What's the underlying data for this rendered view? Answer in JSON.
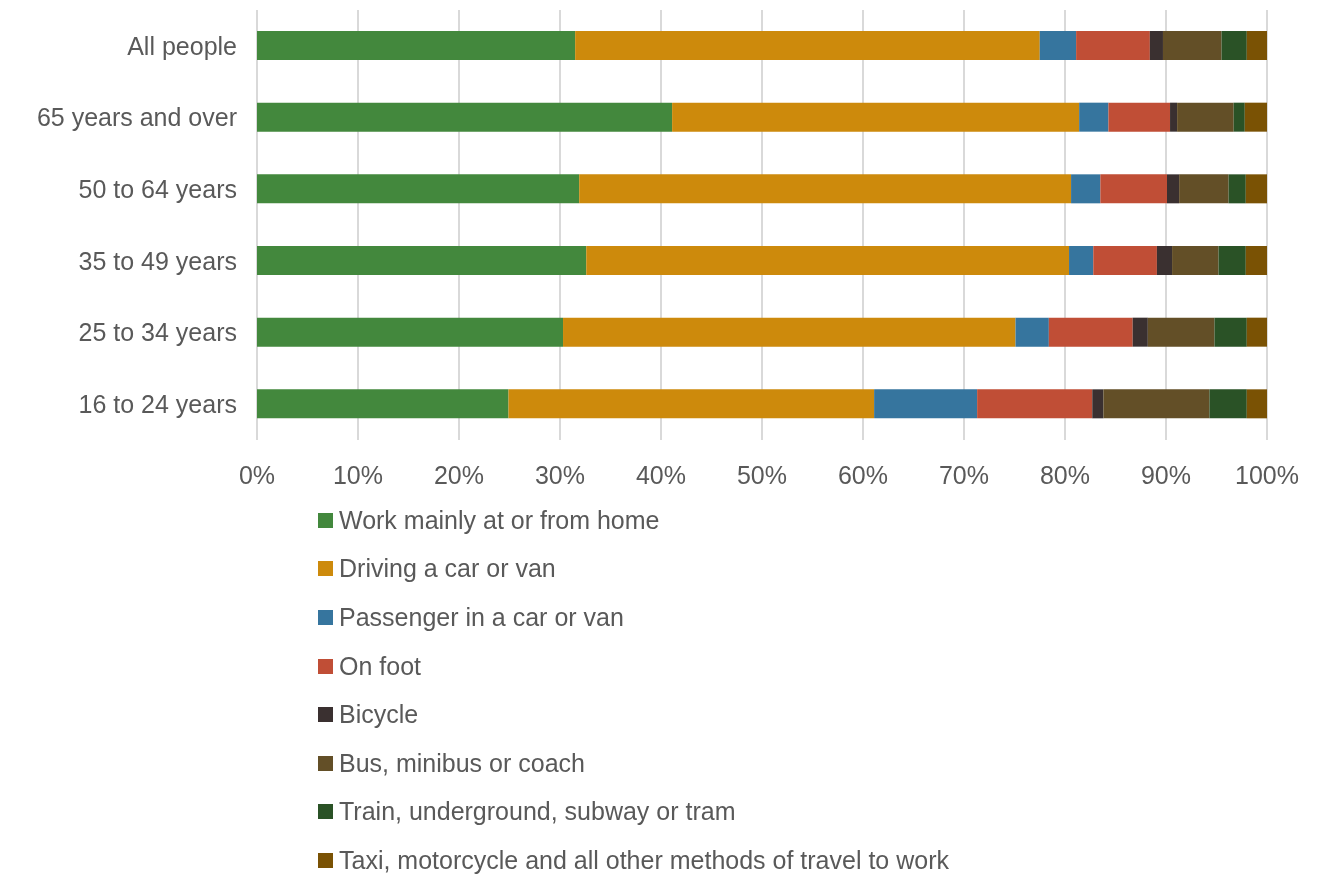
{
  "chart_data": {
    "type": "bar",
    "orientation": "horizontal",
    "stacked": true,
    "categories": [
      "All people",
      "65 years and over",
      "50 to 64 years",
      "35 to 49 years",
      "25 to 34 years",
      "16 to 24 years"
    ],
    "series": [
      {
        "name": "Work mainly at or from home",
        "color": "#43883d",
        "values": [
          31.5,
          41.1,
          31.9,
          32.6,
          30.3,
          24.9
        ]
      },
      {
        "name": "Driving a car or van",
        "color": "#cd8a0c",
        "values": [
          46.0,
          40.3,
          48.7,
          47.8,
          44.8,
          36.2
        ]
      },
      {
        "name": "Passenger in a car or van",
        "color": "#36759e",
        "values": [
          3.6,
          2.9,
          2.9,
          2.4,
          3.3,
          10.2
        ]
      },
      {
        "name": "On foot",
        "color": "#c04e36",
        "values": [
          7.3,
          6.1,
          6.6,
          6.3,
          8.3,
          11.4
        ]
      },
      {
        "name": "Bicycle",
        "color": "#3a3030",
        "values": [
          1.3,
          0.7,
          1.2,
          1.5,
          1.5,
          1.1
        ]
      },
      {
        "name": "Bus, minibus or coach",
        "color": "#634f27",
        "values": [
          5.8,
          5.6,
          4.9,
          4.6,
          6.6,
          10.5
        ]
      },
      {
        "name": "Train, underground, subway or tram",
        "color": "#2a5226",
        "values": [
          2.5,
          1.1,
          1.7,
          2.7,
          3.2,
          3.7
        ]
      },
      {
        "name": "Taxi, motorcycle and all other methods of travel to work",
        "color": "#7a5204",
        "values": [
          2.0,
          2.2,
          2.1,
          2.1,
          2.0,
          2.0
        ]
      }
    ],
    "xlim": [
      0,
      100
    ],
    "xticks": [
      {
        "value": 0,
        "label": "0%"
      },
      {
        "value": 10,
        "label": "10%"
      },
      {
        "value": 20,
        "label": "20%"
      },
      {
        "value": 30,
        "label": "30%"
      },
      {
        "value": 40,
        "label": "40%"
      },
      {
        "value": 50,
        "label": "50%"
      },
      {
        "value": 60,
        "label": "60%"
      },
      {
        "value": 70,
        "label": "70%"
      },
      {
        "value": 80,
        "label": "80%"
      },
      {
        "value": 90,
        "label": "90%"
      },
      {
        "value": 100,
        "label": "100%"
      }
    ],
    "grid": "x",
    "legend": "bottom"
  }
}
